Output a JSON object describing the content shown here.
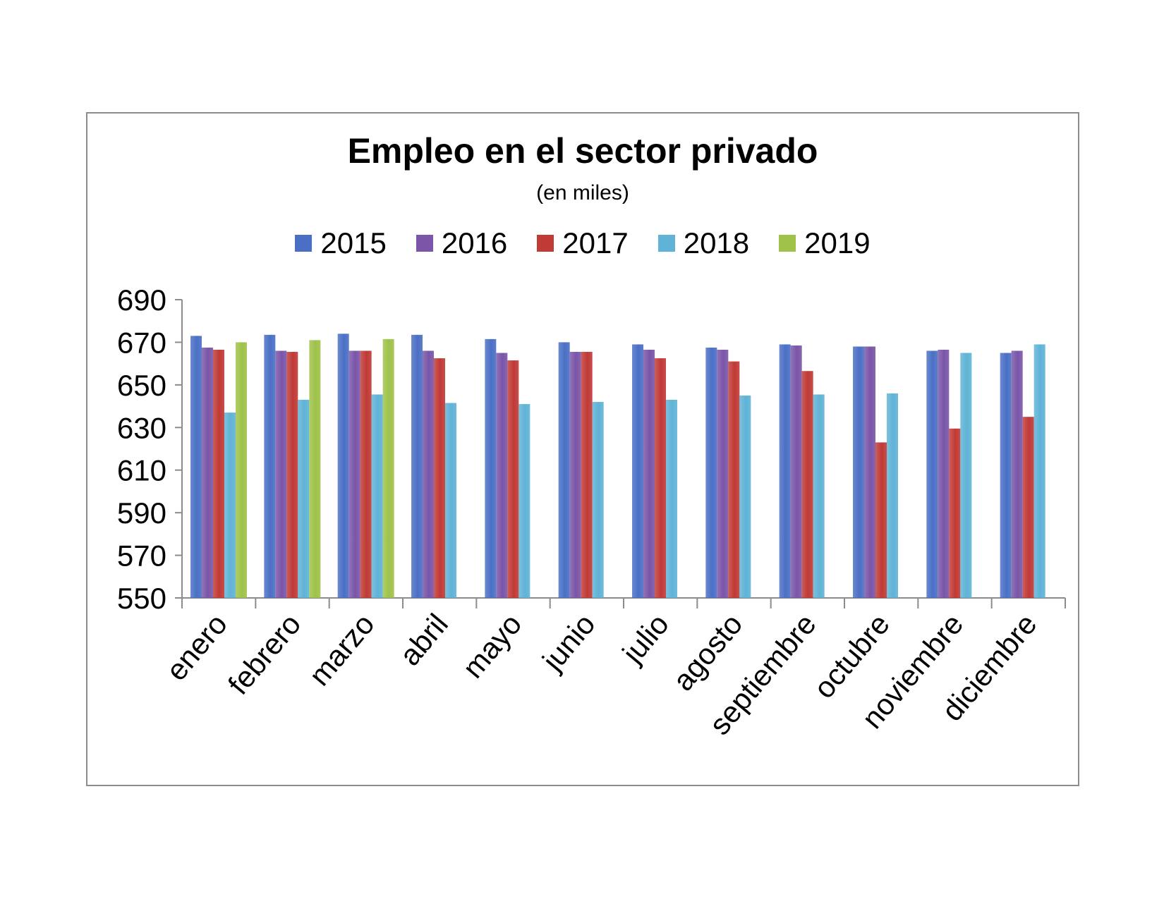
{
  "chart_data": {
    "type": "bar",
    "title": "Empleo en el sector privado",
    "subtitle": "(en miles)",
    "xlabel": "",
    "ylabel": "",
    "ylim": [
      550,
      690
    ],
    "yticks": [
      550,
      570,
      590,
      610,
      630,
      650,
      670,
      690
    ],
    "grid": false,
    "legend_position": "top",
    "categories": [
      "enero",
      "febrero",
      "marzo",
      "abril",
      "mayo",
      "junio",
      "julio",
      "agosto",
      "septiembre",
      "octubre",
      "noviembre",
      "diciembre"
    ],
    "series": [
      {
        "name": "2015",
        "color": "#4a6fc5",
        "values": [
          673,
          673.5,
          674,
          673.5,
          671.5,
          670,
          669,
          667.5,
          669,
          668,
          666,
          665
        ]
      },
      {
        "name": "2016",
        "color": "#7a55a8",
        "values": [
          667.5,
          666,
          666,
          666,
          665,
          665.5,
          666.5,
          666.5,
          668.5,
          668,
          666.5,
          666
        ]
      },
      {
        "name": "2017",
        "color": "#c03a36",
        "values": [
          666.5,
          665.5,
          666,
          662.5,
          661.5,
          665.5,
          662.5,
          661,
          656.5,
          623,
          629.5,
          635
        ]
      },
      {
        "name": "2018",
        "color": "#5fb3d6",
        "values": [
          637,
          643,
          645.5,
          641.5,
          641,
          642,
          643,
          645,
          645.5,
          646,
          665,
          669
        ]
      },
      {
        "name": "2019",
        "color": "#9fc24a",
        "values": [
          670,
          671,
          671.5,
          null,
          null,
          null,
          null,
          null,
          null,
          null,
          null,
          null
        ]
      }
    ]
  }
}
